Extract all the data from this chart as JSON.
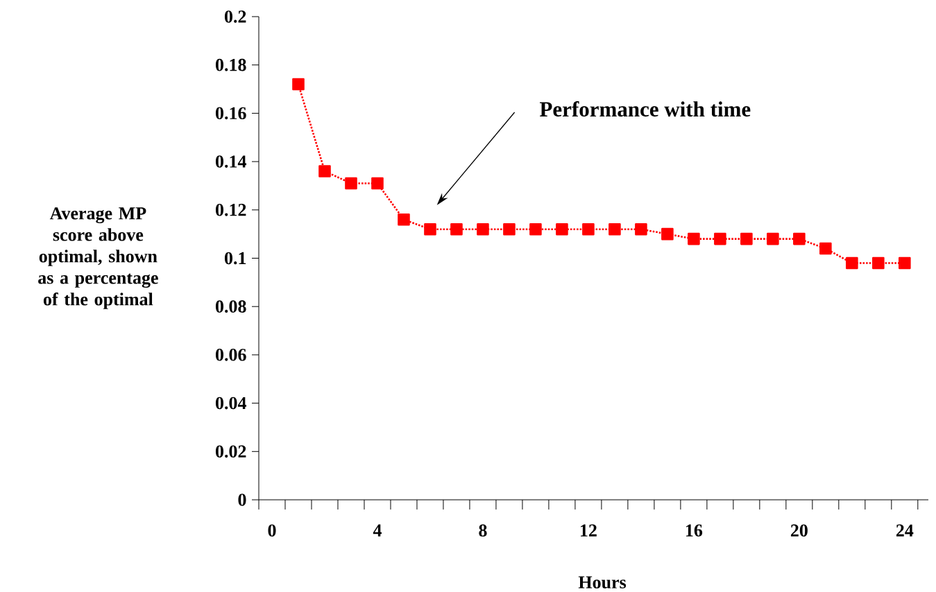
{
  "chart_data": {
    "type": "line",
    "xlabel": "Hours",
    "ylabel": "Average MP score above optimal, shown as a percentage of the optimal",
    "annotations": [
      "Performance with time"
    ],
    "x": [
      1,
      2,
      3,
      4,
      5,
      6,
      7,
      8,
      9,
      10,
      11,
      12,
      13,
      14,
      15,
      16,
      17,
      18,
      19,
      20,
      21,
      22,
      23,
      24
    ],
    "series": [
      {
        "color": "#ff0000",
        "values": [
          0.172,
          0.136,
          0.131,
          0.131,
          0.116,
          0.112,
          0.112,
          0.112,
          0.112,
          0.112,
          0.112,
          0.112,
          0.112,
          0.112,
          0.11,
          0.108,
          0.108,
          0.108,
          0.108,
          0.108,
          0.104,
          0.098,
          0.098,
          0.098
        ]
      }
    ],
    "xlim": [
      -0.5,
      24.9
    ],
    "xticks": [
      0,
      4,
      8,
      12,
      16,
      20,
      24,
      {
        "value": -0.5,
        "label": null
      },
      {
        "value": 0.5,
        "label": null
      },
      {
        "value": 1.5,
        "label": null
      },
      {
        "value": 2.5,
        "label": null
      },
      {
        "value": 3.5,
        "label": null
      },
      {
        "value": 4.5,
        "label": null
      },
      {
        "value": 5.5,
        "label": null
      },
      {
        "value": 6.5,
        "label": null
      },
      {
        "value": 7.5,
        "label": null
      },
      {
        "value": 8.5,
        "label": null
      },
      {
        "value": 9.5,
        "label": null
      },
      {
        "value": 10.5,
        "label": null
      },
      {
        "value": 11.5,
        "label": null
      },
      {
        "value": 12.5,
        "label": null
      },
      {
        "value": 13.5,
        "label": null
      },
      {
        "value": 14.5,
        "label": null
      },
      {
        "value": 15.5,
        "label": null
      },
      {
        "value": 16.5,
        "label": null
      },
      {
        "value": 17.5,
        "label": null
      },
      {
        "value": 18.5,
        "label": null
      },
      {
        "value": 19.5,
        "label": null
      },
      {
        "value": 20.5,
        "label": null
      },
      {
        "value": 21.5,
        "label": null
      },
      {
        "value": 22.5,
        "label": null
      },
      {
        "value": 23.5,
        "label": null
      },
      {
        "value": 24.5,
        "label": null
      }
    ],
    "ylim": [
      0,
      0.2
    ],
    "yticks": [
      0,
      0.02,
      0.04,
      0.06,
      0.08,
      0.1,
      0.12,
      0.14,
      0.16,
      0.18,
      0.2
    ],
    "marker": "square",
    "line_style": "dotted",
    "grid": false,
    "legend": false
  }
}
